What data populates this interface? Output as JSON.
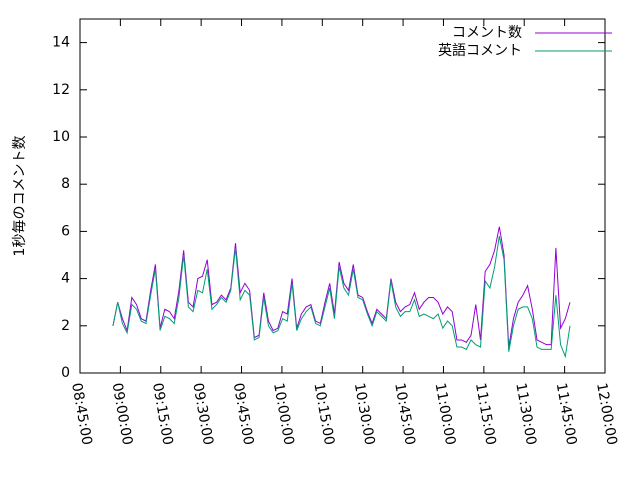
{
  "chart_data": {
    "type": "line",
    "ylabel": "1秒毎のコメント数",
    "xlim": [
      "08:45:00",
      "12:00:00"
    ],
    "xticks": [
      "08:45:00",
      "09:00:00",
      "09:15:00",
      "09:30:00",
      "09:45:00",
      "10:00:00",
      "10:15:00",
      "10:30:00",
      "10:45:00",
      "11:00:00",
      "11:15:00",
      "11:30:00",
      "11:45:00",
      "12:00:00"
    ],
    "ylim": [
      0,
      15
    ],
    "yticks": [
      0,
      2,
      4,
      6,
      8,
      10,
      12,
      14
    ],
    "legend": "top-right",
    "x": [
      "08:57:15",
      "08:59:00",
      "09:00:45",
      "09:02:30",
      "09:04:15",
      "09:06:00",
      "09:07:45",
      "09:09:30",
      "09:11:15",
      "09:13:00",
      "09:14:45",
      "09:16:30",
      "09:18:15",
      "09:20:00",
      "09:21:45",
      "09:23:30",
      "09:25:15",
      "09:27:00",
      "09:28:45",
      "09:30:30",
      "09:32:15",
      "09:34:00",
      "09:35:45",
      "09:37:30",
      "09:39:15",
      "09:41:00",
      "09:42:45",
      "09:44:30",
      "09:46:15",
      "09:48:00",
      "09:49:45",
      "09:51:30",
      "09:53:15",
      "09:55:00",
      "09:56:45",
      "09:58:30",
      "10:00:15",
      "10:02:00",
      "10:03:45",
      "10:05:30",
      "10:07:15",
      "10:09:00",
      "10:10:45",
      "10:12:30",
      "10:14:15",
      "10:16:00",
      "10:17:45",
      "10:19:30",
      "10:21:15",
      "10:23:00",
      "10:24:45",
      "10:26:30",
      "10:28:15",
      "10:30:00",
      "10:31:45",
      "10:33:30",
      "10:35:15",
      "10:37:00",
      "10:38:45",
      "10:40:30",
      "10:42:15",
      "10:44:00",
      "10:45:45",
      "10:47:30",
      "10:49:15",
      "10:51:00",
      "10:52:45",
      "10:54:30",
      "10:56:15",
      "10:58:00",
      "10:59:45",
      "11:01:30",
      "11:03:15",
      "11:05:00",
      "11:06:45",
      "11:08:30",
      "11:10:15",
      "11:12:00",
      "11:13:45",
      "11:15:30",
      "11:17:15",
      "11:19:00",
      "11:20:45",
      "11:22:30",
      "11:24:15",
      "11:26:00",
      "11:27:45",
      "11:29:30",
      "11:31:15",
      "11:33:00",
      "11:34:45",
      "11:36:30",
      "11:38:15",
      "11:40:00",
      "11:41:45",
      "11:43:30",
      "11:45:15",
      "11:47:00"
    ],
    "series": [
      {
        "name": "コメント数",
        "color": "#9400d3",
        "values": [
          2.0,
          3.0,
          2.3,
          1.8,
          3.2,
          2.9,
          2.3,
          2.2,
          3.5,
          4.6,
          1.9,
          2.7,
          2.6,
          2.3,
          3.5,
          5.2,
          3.0,
          2.8,
          4.0,
          4.1,
          4.8,
          2.9,
          3.0,
          3.3,
          3.1,
          3.6,
          5.5,
          3.4,
          3.8,
          3.5,
          1.5,
          1.6,
          3.4,
          2.2,
          1.8,
          1.9,
          2.6,
          2.5,
          4.0,
          1.9,
          2.5,
          2.8,
          2.9,
          2.2,
          2.1,
          3.0,
          3.8,
          2.5,
          4.7,
          3.8,
          3.5,
          4.6,
          3.3,
          3.2,
          2.6,
          2.1,
          2.7,
          2.5,
          2.3,
          4.0,
          3.0,
          2.6,
          2.8,
          2.9,
          3.4,
          2.7,
          3.0,
          3.2,
          3.2,
          3.0,
          2.5,
          2.8,
          2.6,
          1.4,
          1.4,
          1.3,
          1.6,
          2.9,
          1.4,
          4.3,
          4.6,
          5.2,
          6.2,
          5.0,
          1.1,
          2.3,
          3.0,
          3.3,
          3.7,
          2.7,
          1.4,
          1.3,
          1.2,
          1.2,
          5.3,
          1.9,
          2.3,
          3.0
        ]
      },
      {
        "name": "英語コメント",
        "color": "#009e73",
        "values": [
          2.0,
          3.0,
          2.1,
          1.7,
          2.9,
          2.7,
          2.2,
          2.1,
          3.3,
          4.4,
          1.8,
          2.4,
          2.3,
          2.1,
          3.2,
          5.0,
          2.8,
          2.6,
          3.5,
          3.4,
          4.4,
          2.7,
          2.9,
          3.2,
          3.0,
          3.5,
          5.3,
          3.1,
          3.5,
          3.3,
          1.4,
          1.5,
          3.2,
          2.0,
          1.7,
          1.8,
          2.3,
          2.2,
          3.8,
          1.8,
          2.3,
          2.6,
          2.8,
          2.1,
          2.0,
          2.8,
          3.6,
          2.3,
          4.5,
          3.6,
          3.3,
          4.4,
          3.2,
          3.1,
          2.5,
          2.0,
          2.6,
          2.4,
          2.2,
          3.9,
          2.8,
          2.4,
          2.6,
          2.6,
          3.1,
          2.4,
          2.5,
          2.4,
          2.3,
          2.5,
          1.9,
          2.2,
          2.0,
          1.1,
          1.1,
          1.0,
          1.4,
          1.2,
          1.1,
          3.9,
          3.6,
          4.5,
          5.8,
          4.8,
          0.9,
          2.0,
          2.7,
          2.8,
          2.8,
          2.3,
          1.1,
          1.0,
          1.0,
          1.0,
          3.3,
          1.2,
          0.7,
          2.0
        ]
      }
    ]
  }
}
